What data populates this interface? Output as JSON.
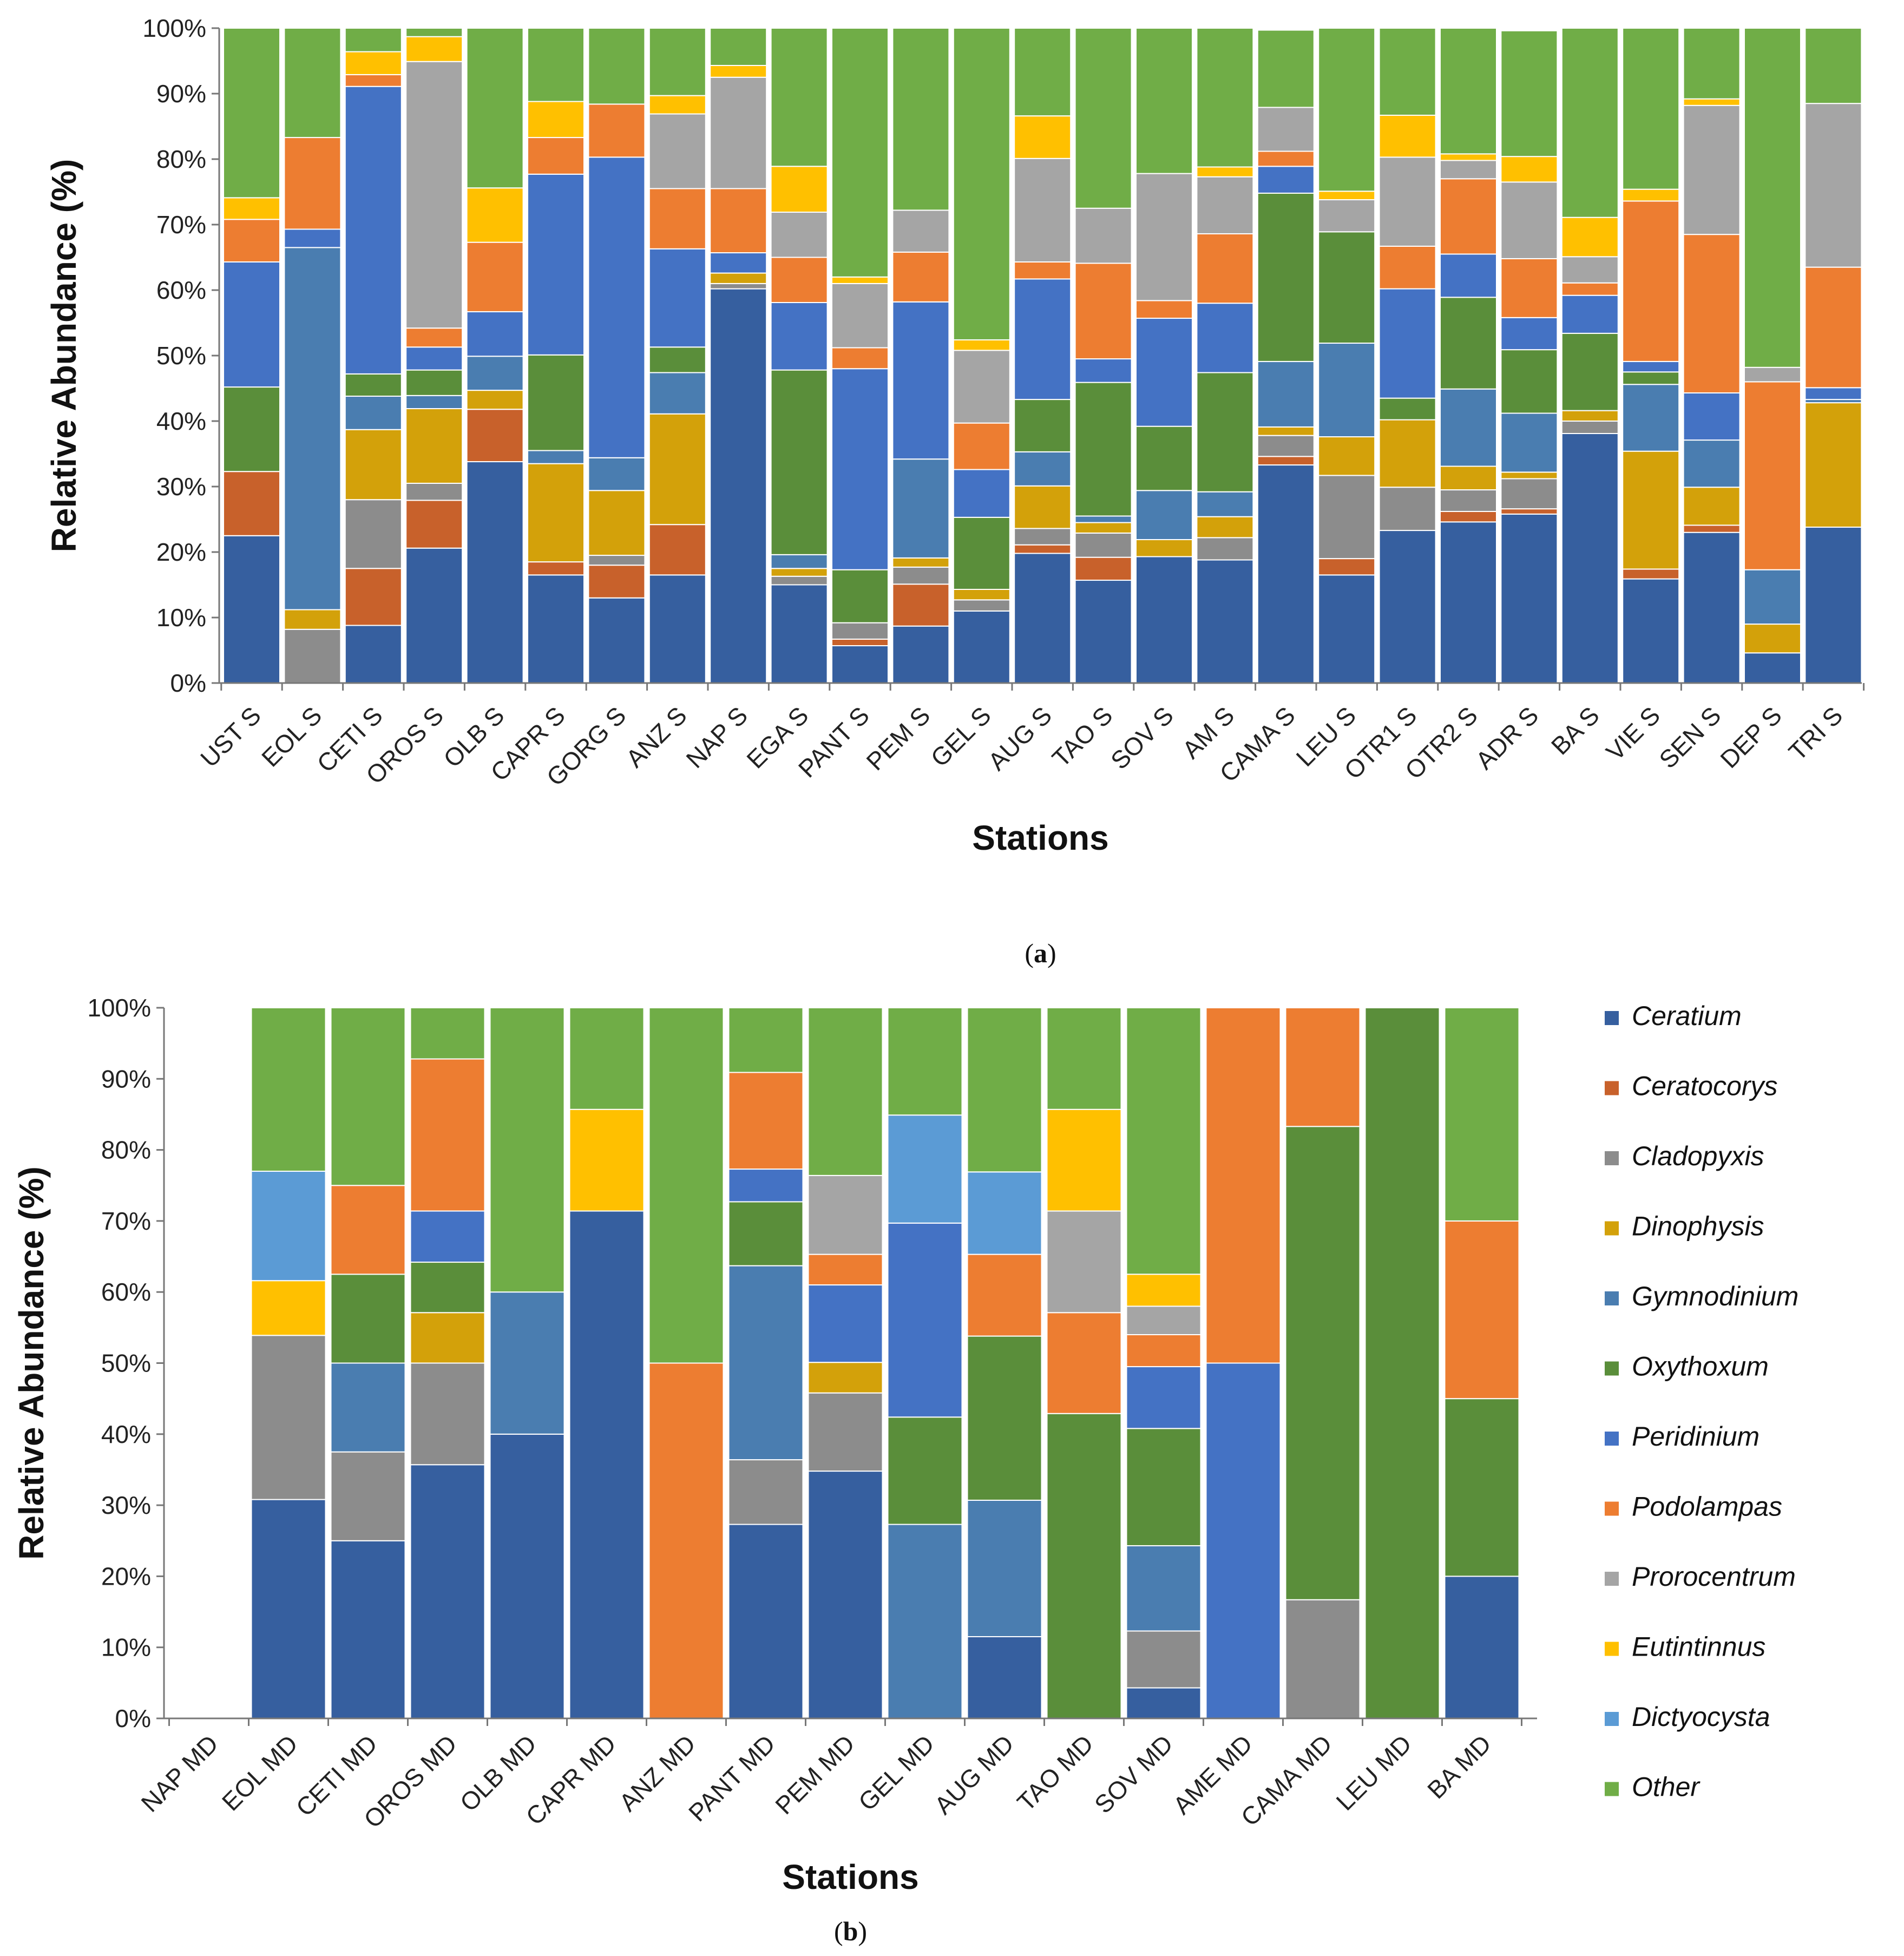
{
  "colors": {
    "Ceratium": "#365F9F",
    "Ceratocorys": "#C8612B",
    "Cladopyxis": "#8C8C8C",
    "Dinophysis": "#D3A10A",
    "Gymnodinium": "#4A7DB0",
    "Oxythoxum": "#5A8E3A",
    "Peridinium": "#4472C4",
    "Podolampas": "#ED7D31",
    "Prorocentrum": "#A5A5A5",
    "Eutintinnus": "#FFC000",
    "Dictyocysta": "#5B9BD5",
    "Other": "#70AD47"
  },
  "legend": {
    "items": [
      "Ceratium",
      "Ceratocorys",
      "Cladopyxis",
      "Dinophysis",
      "Gymnodinium",
      "Oxythoxum",
      "Peridinium",
      "Podolampas",
      "Prorocentrum",
      "Eutintinnus",
      "Dictyocysta",
      "Other"
    ]
  },
  "chart_data": [
    {
      "id": "a",
      "type": "bar",
      "stacked": true,
      "panel_label": "(a)",
      "xlabel": "Stations",
      "ylabel": "Relative Abundance (%)",
      "ylim": [
        0,
        100
      ],
      "yticks": [
        "0%",
        "10%",
        "20%",
        "30%",
        "40%",
        "50%",
        "60%",
        "70%",
        "80%",
        "90%",
        "100%"
      ],
      "categories": [
        "UST S",
        "EOL S",
        "CETI S",
        "OROS S",
        "OLB S",
        "CAPR S",
        "GORG S",
        "ANZ S",
        "NAP S",
        "EGA S",
        "PANT S",
        "PEM S",
        "GEL S",
        "AUG S",
        "TAO S",
        "SOV S",
        "AM S",
        "CAMA S",
        "LEU S",
        "OTR1 S",
        "OTR2 S",
        "ADR  S",
        "BA S",
        "VIE S",
        "SEN S",
        "DEP S",
        "TRI S"
      ],
      "series": [
        {
          "name": "Ceratium",
          "values": [
            22.5,
            0,
            8.8,
            20.6,
            33.8,
            16.5,
            13.0,
            16.5,
            60.2,
            15.0,
            5.7,
            8.7,
            11.0,
            19.8,
            15.7,
            19.3,
            18.8,
            33.3,
            16.5,
            23.3,
            24.6,
            25.8,
            38.1,
            15.9,
            23.0,
            4.6,
            23.8
          ]
        },
        {
          "name": "Ceratocorys",
          "values": [
            9.8,
            0,
            8.7,
            7.3,
            8.0,
            2.0,
            5.0,
            7.7,
            0,
            0,
            1.0,
            6.4,
            0,
            1.3,
            3.5,
            0,
            0,
            1.3,
            2.5,
            0,
            1.6,
            0.8,
            0,
            1.5,
            1.1,
            0,
            0
          ]
        },
        {
          "name": "Cladopyxis",
          "values": [
            0,
            8.2,
            10.5,
            2.6,
            0,
            0,
            1.5,
            0,
            0.8,
            1.3,
            2.5,
            2.6,
            1.7,
            2.5,
            3.7,
            0,
            3.4,
            3.2,
            12.7,
            6.6,
            3.3,
            4.6,
            1.9,
            0,
            0,
            0,
            0
          ]
        },
        {
          "name": "Dinophysis",
          "values": [
            0,
            3.0,
            10.7,
            11.4,
            2.9,
            15.0,
            9.9,
            16.9,
            1.6,
            1.2,
            0,
            1.4,
            1.6,
            6.5,
            1.6,
            2.6,
            3.2,
            1.3,
            5.9,
            10.3,
            3.6,
            1.0,
            1.6,
            18.0,
            5.8,
            4.4,
            19.0
          ]
        },
        {
          "name": "Gymnodinium",
          "values": [
            0,
            55.3,
            5.1,
            2.0,
            5.2,
            2.0,
            5.0,
            6.3,
            0,
            2.1,
            0,
            15.1,
            0,
            5.2,
            1.0,
            7.5,
            3.8,
            10.0,
            14.3,
            0,
            11.8,
            9.0,
            0,
            10.2,
            7.2,
            8.3,
            0.5
          ]
        },
        {
          "name": "Oxythoxum",
          "values": [
            12.9,
            0,
            3.4,
            3.9,
            0,
            14.6,
            0,
            3.9,
            0,
            28.2,
            8.1,
            0,
            11.0,
            8.0,
            20.4,
            9.8,
            18.2,
            25.7,
            17.0,
            3.3,
            14.0,
            9.7,
            11.8,
            1.9,
            0,
            0,
            0
          ]
        },
        {
          "name": "Peridinium",
          "values": [
            19.1,
            2.8,
            43.9,
            3.5,
            6.8,
            27.6,
            45.9,
            15.0,
            3.1,
            10.3,
            30.7,
            24.0,
            7.3,
            18.4,
            3.6,
            16.5,
            10.6,
            4.1,
            0,
            16.7,
            6.6,
            4.9,
            5.8,
            1.6,
            7.2,
            0,
            1.8
          ]
        },
        {
          "name": "Podolampas",
          "values": [
            6.5,
            14.0,
            1.8,
            2.9,
            10.6,
            5.6,
            8.1,
            9.2,
            9.8,
            6.9,
            3.2,
            7.6,
            7.1,
            2.6,
            14.6,
            2.7,
            10.6,
            2.3,
            0,
            6.5,
            11.5,
            9.0,
            1.9,
            24.5,
            24.2,
            28.7,
            18.4
          ]
        },
        {
          "name": "Prorocentrum",
          "values": [
            0,
            0,
            0,
            40.7,
            0,
            0,
            0,
            11.4,
            17.0,
            6.9,
            9.8,
            6.4,
            11.1,
            15.8,
            8.4,
            19.4,
            8.7,
            6.7,
            4.9,
            13.6,
            2.8,
            11.7,
            4.0,
            0,
            19.7,
            2.2,
            25.0
          ]
        },
        {
          "name": "Eutintinnus",
          "values": [
            3.3,
            0,
            3.5,
            3.8,
            8.3,
            5.5,
            0,
            2.8,
            1.8,
            7.0,
            1.0,
            0,
            1.6,
            6.5,
            0,
            0,
            1.5,
            0,
            1.3,
            6.4,
            1.0,
            3.9,
            6.0,
            1.8,
            1.0,
            0,
            0
          ]
        },
        {
          "name": "Dictyocysta",
          "values": [
            0,
            0,
            0,
            0,
            0,
            0,
            0,
            0,
            0,
            0,
            0,
            0,
            0,
            0,
            0,
            0,
            0,
            0,
            0,
            0,
            0,
            0,
            0,
            0,
            0,
            0,
            0
          ]
        },
        {
          "name": "Other",
          "values": [
            25.9,
            16.7,
            3.6,
            1.3,
            24.4,
            11.2,
            11.6,
            10.3,
            5.7,
            21.1,
            38.0,
            27.8,
            47.6,
            13.4,
            27.5,
            22.2,
            21.2,
            11.8,
            24.9,
            13.3,
            19.2,
            19.2,
            28.9,
            24.6,
            10.8,
            51.8,
            11.5
          ]
        }
      ]
    },
    {
      "id": "b",
      "type": "bar",
      "stacked": true,
      "panel_label": "(b)",
      "xlabel": "Stations",
      "ylabel": "Relative Abundance (%)",
      "ylim": [
        0,
        100
      ],
      "yticks": [
        "0%",
        "10%",
        "20%",
        "30%",
        "40%",
        "50%",
        "60%",
        "70%",
        "80%",
        "90%",
        "100%"
      ],
      "categories": [
        "NAP MD",
        "EOL MD",
        "CETI MD",
        "OROS MD",
        "OLB MD",
        "CAPR MD",
        "ANZ MD",
        "PANT MD",
        "PEM MD",
        "GEL MD",
        "AUG MD",
        "TAO MD",
        "SOV MD",
        "AME MD",
        "CAMA MD",
        "LEU MD",
        "BA MD"
      ],
      "series": [
        {
          "name": "Ceratium",
          "values": [
            0,
            30.8,
            25.0,
            35.7,
            40.0,
            71.4,
            0,
            27.3,
            34.8,
            0,
            11.5,
            0,
            4.3,
            0,
            0,
            0,
            20.0
          ]
        },
        {
          "name": "Ceratocorys",
          "values": [
            0,
            0,
            0,
            0,
            0,
            0,
            0,
            0,
            0,
            0,
            0,
            0,
            0,
            0,
            0,
            0,
            0
          ]
        },
        {
          "name": "Cladopyxis",
          "values": [
            0,
            23.1,
            12.5,
            14.3,
            0,
            0,
            0,
            9.1,
            11.0,
            0,
            0,
            0,
            8.0,
            0,
            16.7,
            0,
            0
          ]
        },
        {
          "name": "Dinophysis",
          "values": [
            0,
            0,
            0,
            7.1,
            0,
            0,
            0,
            0,
            4.3,
            0,
            0,
            0,
            0,
            0,
            0,
            0,
            0
          ]
        },
        {
          "name": "Gymnodinium",
          "values": [
            0,
            0,
            12.5,
            0,
            20.0,
            0,
            0,
            27.3,
            0,
            27.3,
            19.2,
            0,
            12.0,
            0,
            0,
            0,
            0
          ]
        },
        {
          "name": "Oxythoxum",
          "values": [
            0,
            0,
            12.5,
            7.1,
            0,
            0,
            0,
            9.0,
            0,
            15.1,
            23.1,
            42.9,
            16.5,
            0,
            66.6,
            100,
            25.0
          ]
        },
        {
          "name": "Peridinium",
          "values": [
            0,
            0,
            0,
            7.2,
            0,
            0,
            0,
            4.6,
            10.9,
            27.3,
            0,
            0,
            8.7,
            50.0,
            0,
            0,
            0
          ]
        },
        {
          "name": "Podolampas",
          "values": [
            0,
            0,
            12.5,
            21.4,
            0,
            0,
            50.0,
            13.6,
            4.3,
            0,
            11.5,
            14.2,
            4.5,
            50.0,
            16.7,
            0,
            25.0
          ]
        },
        {
          "name": "Prorocentrum",
          "values": [
            0,
            0,
            0,
            0,
            0,
            0,
            0,
            0,
            11.1,
            0,
            0,
            14.3,
            4.0,
            0,
            0,
            0,
            0
          ]
        },
        {
          "name": "Eutintinnus",
          "values": [
            0,
            7.7,
            0,
            0,
            0,
            14.3,
            0,
            0,
            0,
            0,
            0,
            14.3,
            4.5,
            0,
            0,
            0,
            0
          ]
        },
        {
          "name": "Dictyocysta",
          "values": [
            0,
            15.4,
            0,
            0,
            0,
            0,
            0,
            0,
            0,
            15.2,
            11.6,
            0,
            0,
            0,
            0,
            0,
            0
          ]
        },
        {
          "name": "Other",
          "values": [
            0,
            23.0,
            25.0,
            7.2,
            40.0,
            14.3,
            50.0,
            9.1,
            23.6,
            15.1,
            23.1,
            14.3,
            37.5,
            0,
            0,
            0,
            30.0
          ]
        }
      ]
    }
  ]
}
